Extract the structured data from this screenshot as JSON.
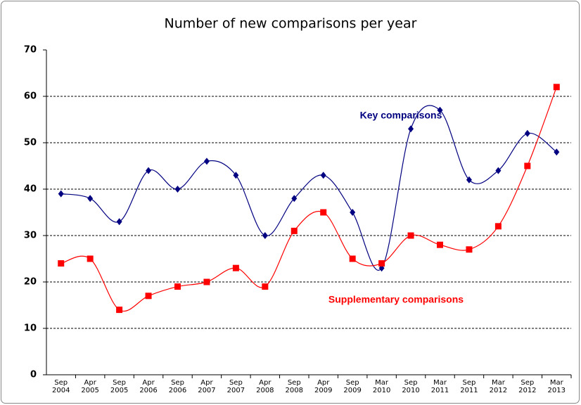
{
  "chart_data": {
    "type": "line",
    "title": "Number of new comparisons  per year",
    "categories": [
      "Sep 2004",
      "Apr 2005",
      "Sep 2005",
      "Apr 2006",
      "Sep 2006",
      "Apr 2007",
      "Sep 2007",
      "Apr 2008",
      "Sep 2008",
      "Apr 2009",
      "Sep 2009",
      "Mar 2010",
      "Sep 2010",
      "Mar 2011",
      "Sep 2011",
      "Mar 2012",
      "Sep 2012",
      "Mar 2013"
    ],
    "series": [
      {
        "name": "Key comparisons",
        "color": "#000080",
        "marker": "diamond",
        "values": [
          39,
          38,
          33,
          44,
          40,
          46,
          43,
          30,
          38,
          43,
          35,
          23,
          53,
          57,
          42,
          44,
          52,
          48
        ]
      },
      {
        "name": "Supplementary comparisons",
        "color": "#ff0000",
        "marker": "square",
        "values": [
          24,
          25,
          14,
          17,
          19,
          20,
          23,
          19,
          31,
          35,
          25,
          24,
          30,
          28,
          27,
          32,
          45,
          62
        ]
      }
    ],
    "ylim": [
      0,
      70
    ],
    "yticks": [
      0,
      10,
      20,
      30,
      40,
      50,
      60,
      70
    ],
    "grid": true,
    "smooth": true
  }
}
